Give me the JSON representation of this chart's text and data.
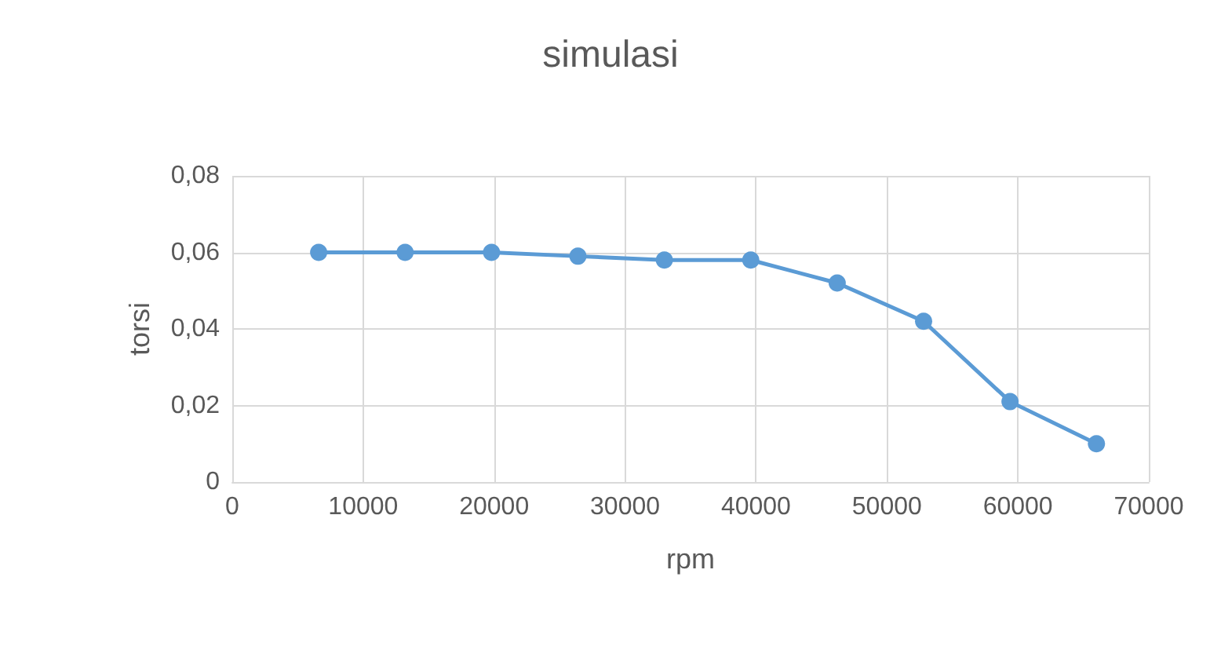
{
  "chart_data": {
    "type": "line",
    "title": "simulasi",
    "xlabel": "rpm",
    "ylabel": "torsi",
    "x": [
      6600,
      13200,
      19800,
      26400,
      33000,
      39600,
      46200,
      52800,
      59400,
      66000
    ],
    "series": [
      {
        "color": "#5b9bd5",
        "values": [
          0.06,
          0.06,
          0.06,
          0.059,
          0.058,
          0.058,
          0.052,
          0.042,
          0.021,
          0.01
        ]
      }
    ],
    "xlim": [
      0,
      70000
    ],
    "xticks": [
      0,
      10000,
      20000,
      30000,
      40000,
      50000,
      60000,
      70000
    ],
    "ylim": [
      0,
      0.08
    ],
    "yticks": [
      {
        "value": 0,
        "label": "0"
      },
      {
        "value": 0.02,
        "label": "0,02"
      },
      {
        "value": 0.04,
        "label": "0,04"
      },
      {
        "value": 0.06,
        "label": "0,06"
      },
      {
        "value": 0.08,
        "label": "0,08"
      }
    ],
    "grid": true,
    "marker": "circle",
    "line_style": "solid"
  }
}
